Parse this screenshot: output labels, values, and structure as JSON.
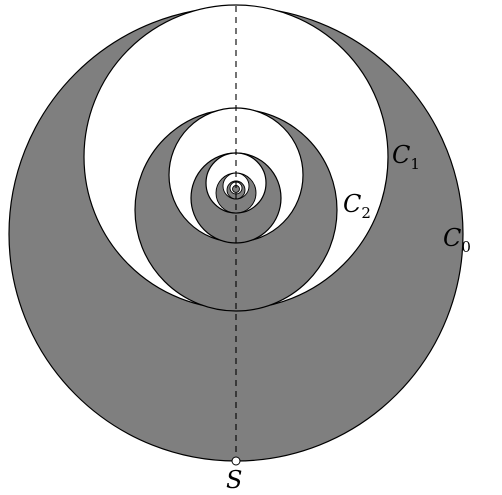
{
  "diagram": {
    "colors": {
      "shaded": "#7f7f7f",
      "white": "#ffffff",
      "stroke": "#000000"
    },
    "labels": {
      "c0": {
        "letter": "C",
        "sub": "0"
      },
      "c1": {
        "letter": "C",
        "sub": "1"
      },
      "c2": {
        "letter": "C",
        "sub": "2"
      },
      "s": "S"
    },
    "point_s": "hollow-point",
    "axis_style": "dashed"
  }
}
